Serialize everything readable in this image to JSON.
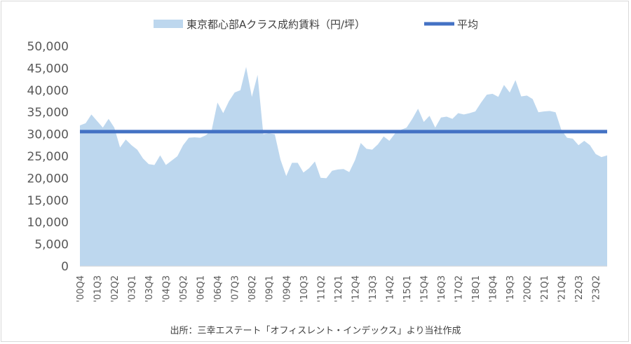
{
  "chart_data": {
    "type": "area",
    "ylim": [
      0,
      50000
    ],
    "yticks": [
      0,
      5000,
      10000,
      15000,
      20000,
      25000,
      30000,
      35000,
      40000,
      45000,
      50000
    ],
    "ytick_labels": [
      "0",
      "5,000",
      "10,000",
      "15,000",
      "20,000",
      "25,000",
      "30,000",
      "35,000",
      "40,000",
      "45,000",
      "50,000"
    ],
    "xtick_labels": [
      "'00Q4",
      "'01Q3",
      "'02Q2",
      "'03Q1",
      "'03Q4",
      "'04Q3",
      "'05Q2",
      "'06Q1",
      "'06Q4",
      "'07Q3",
      "'08Q2",
      "'09Q1",
      "'09Q4",
      "'10Q3",
      "'11Q2",
      "'12Q1",
      "'12Q4",
      "'13Q3",
      "'14Q2",
      "'15Q1",
      "'15Q4",
      "'16Q3",
      "'17Q2",
      "'18Q1",
      "'18Q4",
      "'19Q3",
      "'20Q2",
      "'21Q1",
      "'21Q4",
      "'22Q3",
      "'23Q2"
    ],
    "series": [
      {
        "name": "東京都心部Aクラス成約賃料（円/坪）",
        "type": "area",
        "color": "#bdd7ee",
        "values": [
          32000,
          32500,
          34500,
          33000,
          31500,
          33500,
          31500,
          27000,
          28800,
          27500,
          26500,
          24500,
          23200,
          23000,
          25200,
          23000,
          24000,
          25000,
          27500,
          29200,
          29300,
          29200,
          29800,
          31000,
          37200,
          34800,
          37500,
          39500,
          40000,
          45300,
          38500,
          43500,
          30000,
          30200,
          30000,
          24200,
          20500,
          23500,
          23500,
          21300,
          22300,
          23800,
          20100,
          20000,
          21700,
          22000,
          22100,
          21400,
          24100,
          28000,
          26700,
          26500,
          27700,
          29500,
          28500,
          30200,
          31000,
          31500,
          33500,
          35800,
          32800,
          34200,
          31500,
          33800,
          34000,
          33500,
          34800,
          34500,
          34800,
          35200,
          37200,
          39000,
          39200,
          38500,
          41200,
          39500,
          42300,
          38600,
          38800,
          38000,
          35000,
          35200,
          35300,
          35000,
          31000,
          29200,
          29000,
          27500,
          28500,
          27500,
          25500,
          24800,
          25200
        ]
      },
      {
        "name": "平均",
        "type": "line",
        "color": "#4472c4",
        "values": [
          30600
        ]
      }
    ],
    "legend": "top",
    "grid": false
  },
  "source_note": "出所：三幸エステート「オフィスレント・インデックス」より当社作成"
}
